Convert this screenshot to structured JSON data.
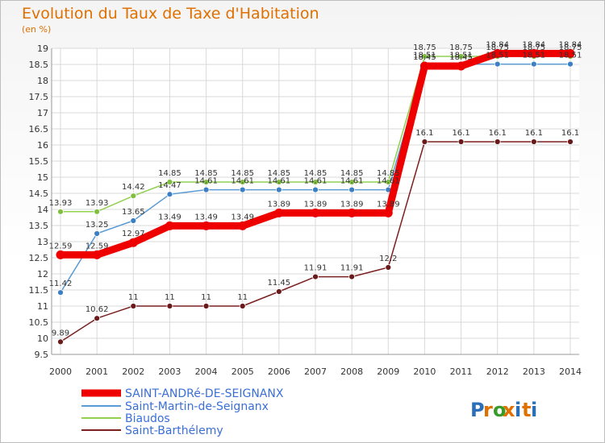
{
  "chart_data": {
    "type": "line",
    "title": "Evolution du Taux de Taxe d'Habitation",
    "subtitle": "(en %)",
    "xlabel": "",
    "ylabel": "",
    "x": [
      "2000",
      "2001",
      "2002",
      "2003",
      "2004",
      "2005",
      "2006",
      "2007",
      "2008",
      "2009",
      "2010",
      "2011",
      "2012",
      "2013",
      "2014"
    ],
    "ylim": [
      9.5,
      19
    ],
    "yticks": [
      "9.5",
      "10",
      "10.5",
      "11",
      "11.5",
      "12",
      "12.5",
      "13",
      "13.5",
      "14",
      "14.5",
      "15",
      "15.5",
      "16",
      "16.5",
      "17",
      "17.5",
      "18",
      "18.5",
      "19"
    ],
    "grid": true,
    "legend_position": "bottom-left",
    "series": [
      {
        "name": "SAINT-ANDRé-DE-SEIGNANX",
        "color": "#ee0000",
        "values": [
          12.59,
          12.59,
          12.97,
          13.49,
          13.49,
          13.49,
          13.89,
          13.89,
          13.89,
          13.89,
          18.45,
          18.45,
          18.84,
          18.84,
          18.84
        ],
        "labels": [
          "12.59",
          "12.59",
          "12.97",
          "13.49",
          "13.49",
          "13.49",
          "13.89",
          "13.89",
          "13.89",
          "13.89",
          "18.45",
          "18.45",
          "18.84",
          "18.84",
          "18.84"
        ]
      },
      {
        "name": "Saint-Martin-de-Seignanx",
        "color": "#5b9bd5",
        "values": [
          11.42,
          13.25,
          13.65,
          14.47,
          14.61,
          14.61,
          14.61,
          14.61,
          14.61,
          14.61,
          18.51,
          18.51,
          18.51,
          18.51,
          18.51
        ],
        "labels": [
          "11.42",
          "13.25",
          "13.65",
          "14.47",
          "14.61",
          "14.61",
          "14.61",
          "14.61",
          "14.61",
          "14.61",
          "18.51",
          "18.51",
          "18.51",
          "18.51",
          "18.51"
        ]
      },
      {
        "name": "Biaudos",
        "color": "#92d050",
        "values": [
          13.93,
          13.93,
          14.42,
          14.85,
          14.85,
          14.85,
          14.85,
          14.85,
          14.85,
          14.85,
          18.75,
          18.75,
          18.75,
          18.75,
          18.75
        ],
        "labels": [
          "13.93",
          "13.93",
          "14.42",
          "14.85",
          "14.85",
          "14.85",
          "14.85",
          "14.85",
          "14.85",
          "14.85",
          "18.75",
          "18.75",
          "18.75",
          "18.75",
          "18.75"
        ]
      },
      {
        "name": "Saint-Barthélemy",
        "color": "#7b2020",
        "values": [
          9.89,
          10.62,
          11,
          11,
          11,
          11,
          11.45,
          11.91,
          11.91,
          12.2,
          16.1,
          16.1,
          16.1,
          16.1,
          16.1
        ],
        "labels": [
          "9.89",
          "10.62",
          "11",
          "11",
          "11",
          "11",
          "11.45",
          "11.91",
          "11.91",
          "12.2",
          "16.1",
          "16.1",
          "16.1",
          "16.1",
          "16.1"
        ]
      }
    ]
  },
  "logo": {
    "text": "Proxiti",
    "colors": [
      "#2a6fb8",
      "#e07000",
      "#3a9a2a",
      "#e07000",
      "#2a6fb8",
      "#e07000",
      "#2a6fb8"
    ]
  }
}
